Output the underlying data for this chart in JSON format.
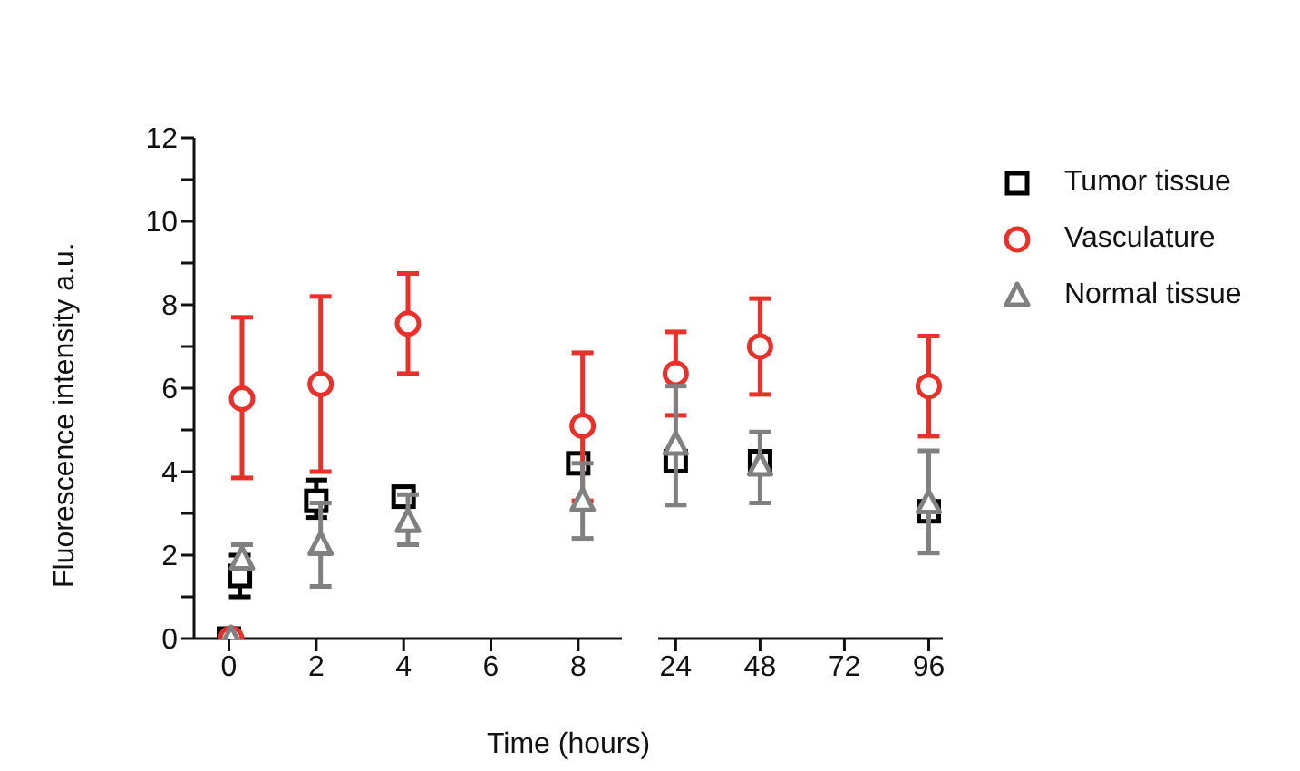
{
  "chart_data": [
    {
      "type": "scatter",
      "ylabel": "Fluorescence intensity a.u.",
      "xlabel": "Time (hours)",
      "xlim": [
        -0.8,
        9
      ],
      "xticks": [
        0,
        2,
        4,
        6,
        8
      ],
      "ylim": [
        0,
        12
      ],
      "yticks": [
        0,
        {
          "value": 1,
          "label": null
        },
        2,
        {
          "value": 3,
          "label": null
        },
        4,
        {
          "value": 5,
          "label": null
        },
        6,
        {
          "value": 7,
          "label": null
        },
        8,
        {
          "value": 9,
          "label": null
        },
        10,
        {
          "value": 11,
          "label": null
        },
        12
      ],
      "legend": false,
      "series": [
        {
          "color": "#000000",
          "marker": "square",
          "x": [
            0,
            0.25,
            2,
            4,
            8
          ],
          "values": [
            0,
            1.5,
            3.3,
            3.4,
            4.2
          ],
          "errors": [
            null,
            [
              1.0,
              2.0
            ],
            [
              2.9,
              3.8
            ],
            null,
            null
          ]
        },
        {
          "color": "#e8312a",
          "marker": "circle",
          "x": [
            0.05,
            0.3,
            2.1,
            4.1,
            8.1
          ],
          "values": [
            0,
            5.75,
            6.1,
            7.55,
            5.1
          ],
          "errors": [
            null,
            [
              3.85,
              7.7
            ],
            [
              4.0,
              8.2
            ],
            [
              6.35,
              8.75
            ],
            [
              3.3,
              6.85
            ]
          ]
        },
        {
          "color": "#808080",
          "marker": "triangle",
          "x": [
            0.05,
            0.3,
            2.1,
            4.1,
            8.1
          ],
          "values": [
            0,
            1.9,
            2.25,
            2.8,
            3.3
          ],
          "errors": [
            null,
            [
              1.7,
              2.25
            ],
            [
              1.25,
              3.25
            ],
            [
              2.25,
              3.45
            ],
            [
              2.4,
              4.2
            ]
          ]
        }
      ]
    },
    {
      "type": "scatter",
      "xlim": [
        19,
        100
      ],
      "xticks": [
        24,
        48,
        72,
        96
      ],
      "ylim": [
        0,
        12
      ],
      "tick_labels": "x",
      "legend": "right",
      "series": [
        {
          "name": "Tumor tissue",
          "color": "#000000",
          "marker": "square",
          "x": [
            24,
            48,
            96
          ],
          "values": [
            4.25,
            4.25,
            3.05
          ],
          "errors": [
            null,
            null,
            null
          ]
        },
        {
          "name": "Vasculature",
          "color": "#e8312a",
          "marker": "circle",
          "x": [
            24,
            48,
            96
          ],
          "values": [
            6.35,
            7.0,
            6.05
          ],
          "errors": [
            [
              5.35,
              7.35
            ],
            [
              5.85,
              8.15
            ],
            [
              4.85,
              7.25
            ]
          ]
        },
        {
          "name": "Normal tissue",
          "color": "#808080",
          "marker": "triangle",
          "x": [
            24,
            48,
            96
          ],
          "values": [
            4.65,
            4.15,
            3.25
          ],
          "errors": [
            [
              3.2,
              6.05
            ],
            [
              3.25,
              4.95
            ],
            [
              2.05,
              4.5
            ]
          ]
        }
      ]
    }
  ]
}
